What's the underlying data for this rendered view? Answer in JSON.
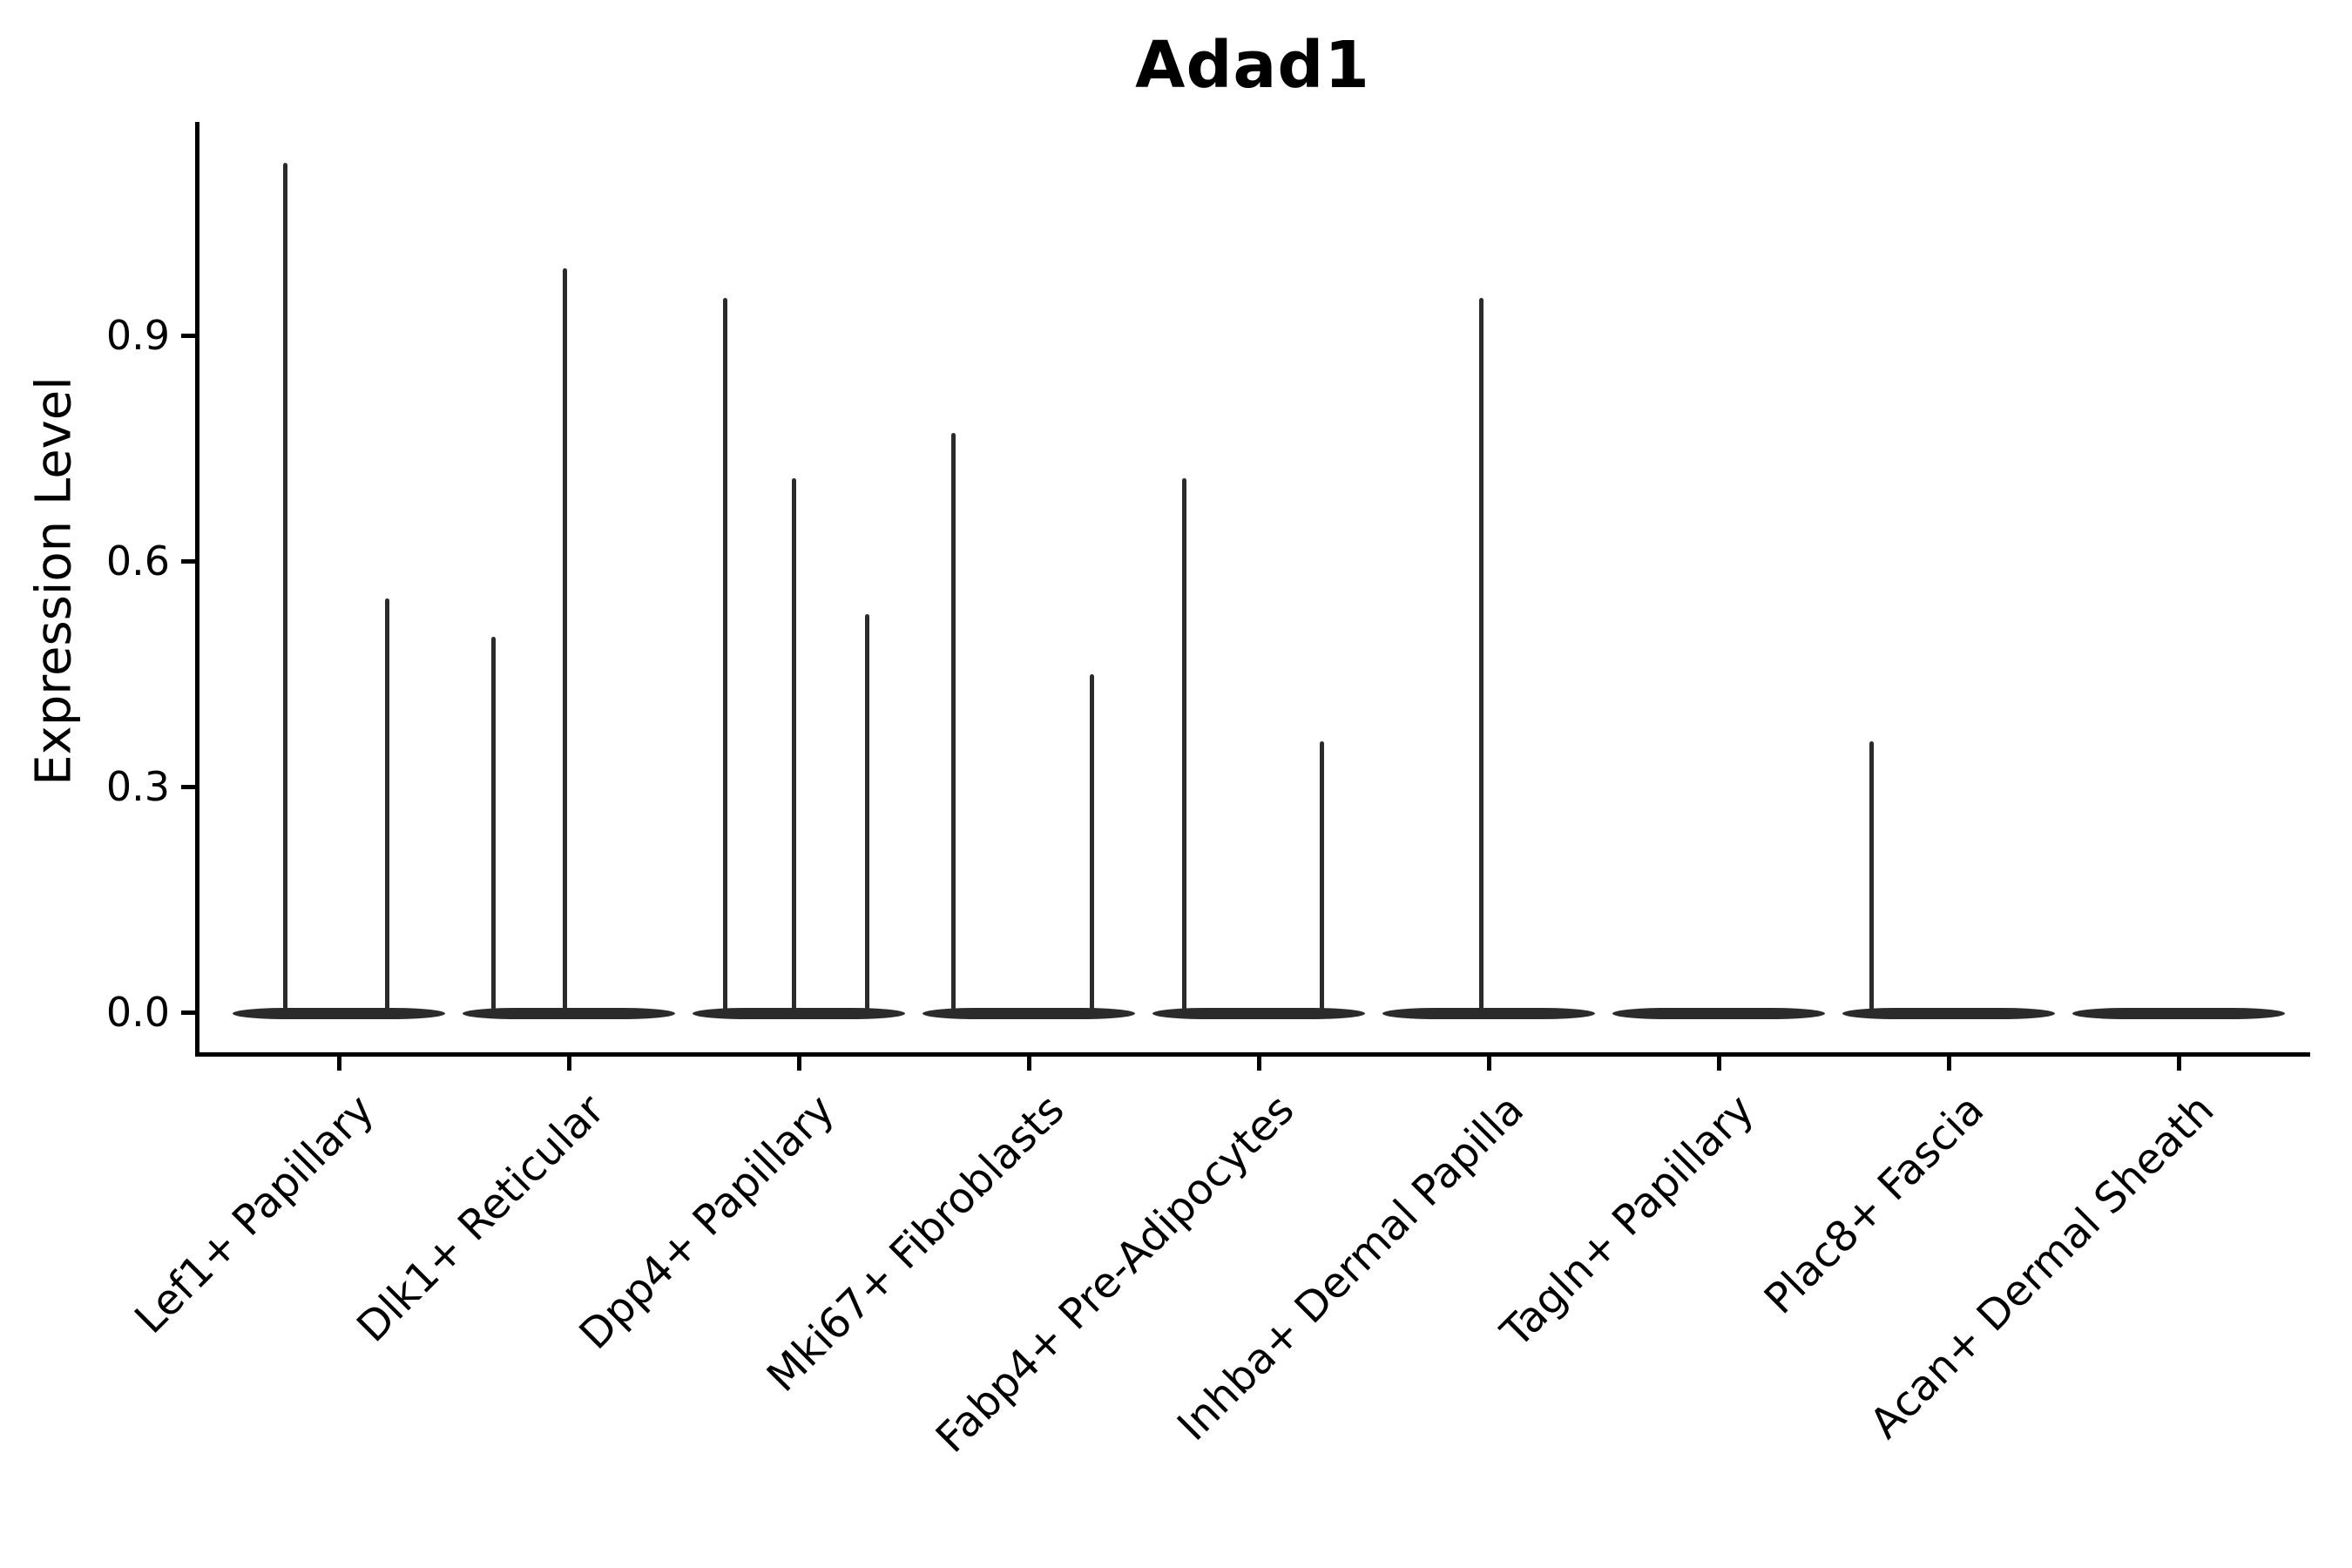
{
  "title": "Adad1",
  "y_axis": {
    "label": "Expression Level",
    "tick_labels": [
      "0.0",
      "0.3",
      "0.6",
      "0.9"
    ],
    "tick_values": [
      0.0,
      0.3,
      0.6,
      0.9
    ]
  },
  "x_axis": {
    "categories": [
      "Lef1+ Papillary",
      "Dlk1+ Reticular",
      "Dpp4+ Papillary",
      "Mki67+ Fibroblasts",
      "Fabp4+ Pre-Adipocytes",
      "Inhba+ Dermal Papilla",
      "Tagln+ Papillary",
      "Plac8+ Fascia",
      "Acan+ Dermal Sheath"
    ]
  },
  "style": {
    "violin_color": "#2b2b2b",
    "axis_color": "#000000",
    "background": "#ffffff"
  },
  "chart_data": {
    "type": "violin",
    "title": "Adad1",
    "xlabel": "",
    "ylabel": "Expression Level",
    "ylim": [
      -0.06,
      1.18
    ],
    "yticks": [
      0.0,
      0.3,
      0.6,
      0.9
    ],
    "grid": false,
    "legend": false,
    "description": "Single-cell expression violin plot; each category shows a flat density mass at 0 with thin spikes reaching the expression level of rare expressing cells.",
    "categories": [
      "Lef1+ Papillary",
      "Dlk1+ Reticular",
      "Dpp4+ Papillary",
      "Mki67+ Fibroblasts",
      "Fabp4+ Pre-Adipocytes",
      "Inhba+ Dermal Papilla",
      "Tagln+ Papillary",
      "Plac8+ Fascia",
      "Acan+ Dermal Sheath"
    ],
    "violins": [
      {
        "category": "Lef1+ Papillary",
        "baseline_value": 0.0,
        "max_value": 1.13,
        "spikes": [
          {
            "offset": -62,
            "value": 1.13
          },
          {
            "offset": 55,
            "value": 0.55
          }
        ]
      },
      {
        "category": "Dlk1+ Reticular",
        "baseline_value": 0.0,
        "max_value": 0.99,
        "spikes": [
          {
            "offset": -87,
            "value": 0.5
          },
          {
            "offset": -5,
            "value": 0.99
          }
        ]
      },
      {
        "category": "Dpp4+ Papillary",
        "baseline_value": 0.0,
        "max_value": 0.95,
        "spikes": [
          {
            "offset": -85,
            "value": 0.95
          },
          {
            "offset": -6,
            "value": 0.71
          },
          {
            "offset": 78,
            "value": 0.53
          }
        ]
      },
      {
        "category": "Mki67+ Fibroblasts",
        "baseline_value": 0.0,
        "max_value": 0.77,
        "spikes": [
          {
            "offset": -87,
            "value": 0.77
          },
          {
            "offset": 72,
            "value": 0.45
          }
        ]
      },
      {
        "category": "Fabp4+ Pre-Adipocytes",
        "baseline_value": 0.0,
        "max_value": 0.71,
        "spikes": [
          {
            "offset": -86,
            "value": 0.71
          },
          {
            "offset": 72,
            "value": 0.36
          }
        ]
      },
      {
        "category": "Inhba+ Dermal Papilla",
        "baseline_value": 0.0,
        "max_value": 0.95,
        "spikes": [
          {
            "offset": -9,
            "value": 0.95
          }
        ]
      },
      {
        "category": "Tagln+ Papillary",
        "baseline_value": 0.0,
        "max_value": 0.0,
        "spikes": []
      },
      {
        "category": "Plac8+ Fascia",
        "baseline_value": 0.0,
        "max_value": 0.36,
        "spikes": [
          {
            "offset": -89,
            "value": 0.36
          }
        ]
      },
      {
        "category": "Acan+ Dermal Sheath",
        "baseline_value": 0.0,
        "max_value": 0.0,
        "spikes": []
      }
    ]
  }
}
